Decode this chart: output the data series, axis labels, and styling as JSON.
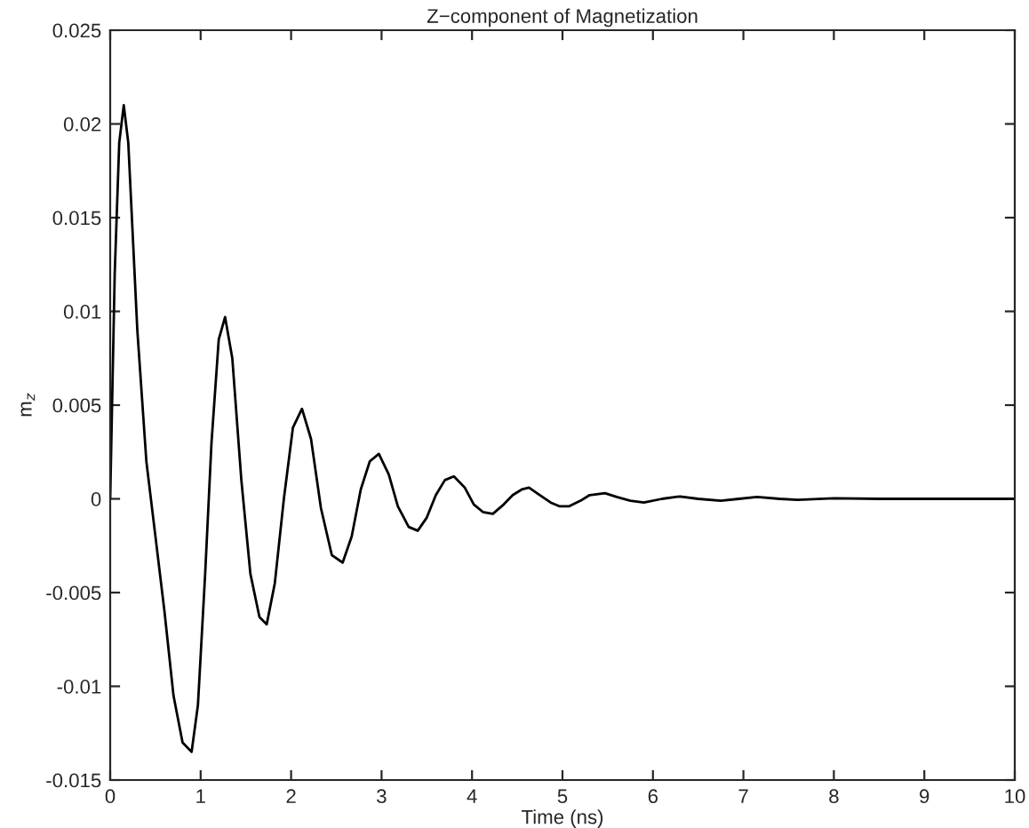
{
  "chart_data": {
    "type": "line",
    "title": "Z−component of Magnetization",
    "xlabel": "Time (ns)",
    "ylabel": "m$_{z}$",
    "x": [
      0,
      0.05,
      0.1,
      0.15,
      0.2,
      0.3,
      0.4,
      0.5,
      0.6,
      0.7,
      0.8,
      0.9,
      0.97,
      1.05,
      1.12,
      1.2,
      1.27,
      1.35,
      1.45,
      1.55,
      1.65,
      1.73,
      1.82,
      1.92,
      2.02,
      2.12,
      2.22,
      2.33,
      2.45,
      2.57,
      2.67,
      2.77,
      2.87,
      2.97,
      3.08,
      3.18,
      3.3,
      3.4,
      3.5,
      3.6,
      3.7,
      3.8,
      3.92,
      4.02,
      4.12,
      4.23,
      4.35,
      4.45,
      4.55,
      4.63,
      4.75,
      4.87,
      4.97,
      5.07,
      5.2,
      5.3,
      5.47,
      5.6,
      5.75,
      5.9,
      6.1,
      6.3,
      6.5,
      6.75,
      6.95,
      7.15,
      7.4,
      7.6,
      8,
      8.5,
      9,
      9.5,
      10
    ],
    "series": [
      {
        "color": "#000000",
        "values": [
          0,
          0.012,
          0.019,
          0.021,
          0.019,
          0.009,
          0.002,
          -0.002,
          -0.006,
          -0.0105,
          -0.013,
          -0.0135,
          -0.011,
          -0.004,
          0.003,
          0.0085,
          0.0097,
          0.0075,
          0.001,
          -0.004,
          -0.0063,
          -0.0067,
          -0.0045,
          0,
          0.0038,
          0.0048,
          0.0032,
          -0.0005,
          -0.003,
          -0.0034,
          -0.002,
          0.0005,
          0.002,
          0.0024,
          0.0013,
          -0.0004,
          -0.0015,
          -0.0017,
          -0.001,
          0.0002,
          0.001,
          0.0012,
          0.0006,
          -0.0003,
          -0.0007,
          -0.0008,
          -0.0003,
          0.0002,
          0.0005,
          0.0006,
          0.0002,
          -0.0002,
          -0.0004,
          -0.0004,
          -0.0001,
          0.0002,
          0.0003,
          0.0001,
          -0.0001,
          -0.0002,
          0,
          0.00013,
          0,
          -0.0001,
          0,
          0.0001,
          0,
          -5e-05,
          3e-05,
          0,
          0,
          0,
          0
        ]
      }
    ],
    "xlim": [
      0,
      10
    ],
    "xticks": [
      0,
      1,
      2,
      3,
      4,
      5,
      6,
      7,
      8,
      9,
      10
    ],
    "ylim": [
      -0.015,
      0.025
    ],
    "yticks": [
      -0.015,
      -0.01,
      -0.005,
      0,
      0.005,
      0.01,
      0.015,
      0.02,
      0.025
    ],
    "grid": false,
    "legend": false,
    "marker": "none",
    "line_style": "solid"
  }
}
